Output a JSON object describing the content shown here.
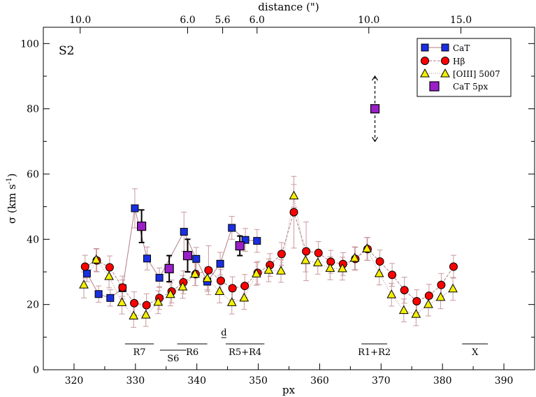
{
  "chart_data": {
    "type": "scatter",
    "panel_label": "S2",
    "xlabel": "px",
    "ylabel_main": "σ (km s",
    "ylabel_sup": "-1",
    "ylabel_close": ")",
    "top_xlabel": "distance (\")",
    "xlim": [
      315,
      395
    ],
    "ylim": [
      0,
      105
    ],
    "x_ticks": [
      320,
      330,
      340,
      350,
      360,
      370,
      380,
      390
    ],
    "y_ticks": [
      0,
      20,
      40,
      60,
      80,
      100
    ],
    "top_ticks": [
      {
        "label": "10.0",
        "x": 321.0
      },
      {
        "label": "6.0",
        "x": 338.5
      },
      {
        "label": "5.6",
        "x": 344.2
      },
      {
        "label": "6.0",
        "x": 349.8
      },
      {
        "label": "10.0",
        "x": 368.0
      },
      {
        "label": "15.0",
        "x": 383.0
      }
    ],
    "legend": [
      {
        "label": "CaT",
        "marker": "square"
      },
      {
        "label": "Hβ",
        "marker": "circle"
      },
      {
        "label": "[OIII] 5007",
        "marker": "triangle"
      },
      {
        "label": "CaT  5px",
        "marker": "bigsquare"
      }
    ],
    "series": [
      {
        "name": "CaT",
        "color": "#1a2fe0",
        "line_color": "#b07f86",
        "points": [
          {
            "x": 322.1,
            "y": 29.5,
            "e": 2.5
          },
          {
            "x": 324.0,
            "y": 23.2,
            "e": 2.5
          },
          {
            "x": 325.9,
            "y": 22.0,
            "e": 2.5
          },
          {
            "x": 327.9,
            "y": 25.0,
            "e": 2.5
          },
          {
            "x": 329.9,
            "y": 49.5,
            "e": 6.0
          },
          {
            "x": 331.9,
            "y": 34.1,
            "e": 3.5
          },
          {
            "x": 333.9,
            "y": 28.2,
            "e": 3.0
          },
          {
            "x": 337.9,
            "y": 42.3,
            "e": 6.0
          },
          {
            "x": 339.9,
            "y": 34.0,
            "e": 3.5
          },
          {
            "x": 341.7,
            "y": 27.0,
            "e": 3.0
          },
          {
            "x": 343.8,
            "y": 32.5,
            "e": 3.5
          },
          {
            "x": 345.7,
            "y": 43.5,
            "e": 3.5
          },
          {
            "x": 347.9,
            "y": 39.8,
            "e": 3.5
          },
          {
            "x": 349.8,
            "y": 39.5,
            "e": 3.5
          }
        ]
      },
      {
        "name": "Hβ",
        "color": "#ff0000",
        "line_color": "#b07f86",
        "points": [
          {
            "x": 321.8,
            "y": 31.6,
            "e": 3.5
          },
          {
            "x": 323.7,
            "y": 33.5,
            "e": 3.5
          },
          {
            "x": 325.8,
            "y": 31.4,
            "e": 3.5
          },
          {
            "x": 327.9,
            "y": 25.2,
            "e": 3.5
          },
          {
            "x": 329.8,
            "y": 20.4,
            "e": 3.5
          },
          {
            "x": 331.8,
            "y": 19.8,
            "e": 3.5
          },
          {
            "x": 333.9,
            "y": 22.0,
            "e": 3.5
          },
          {
            "x": 335.9,
            "y": 24.0,
            "e": 3.5
          },
          {
            "x": 337.8,
            "y": 26.8,
            "e": 3.5
          },
          {
            "x": 339.8,
            "y": 29.3,
            "e": 3.5
          },
          {
            "x": 341.9,
            "y": 30.5,
            "e": 7.5
          },
          {
            "x": 343.9,
            "y": 27.3,
            "e": 3.5
          },
          {
            "x": 345.8,
            "y": 25.0,
            "e": 3.5
          },
          {
            "x": 347.8,
            "y": 25.7,
            "e": 3.5
          },
          {
            "x": 349.9,
            "y": 29.7,
            "e": 3.5
          },
          {
            "x": 351.9,
            "y": 32.1,
            "e": 3.5
          },
          {
            "x": 353.8,
            "y": 35.5,
            "e": 3.5
          },
          {
            "x": 355.8,
            "y": 48.3,
            "e": 11.0
          },
          {
            "x": 357.8,
            "y": 36.3,
            "e": 9.0
          },
          {
            "x": 359.8,
            "y": 35.8,
            "e": 3.5
          },
          {
            "x": 361.8,
            "y": 33.1,
            "e": 3.5
          },
          {
            "x": 363.8,
            "y": 32.4,
            "e": 3.5
          },
          {
            "x": 365.8,
            "y": 34.0,
            "e": 3.5
          },
          {
            "x": 367.8,
            "y": 37.0,
            "e": 3.5
          },
          {
            "x": 369.8,
            "y": 33.2,
            "e": 3.5
          },
          {
            "x": 371.8,
            "y": 29.1,
            "e": 3.5
          },
          {
            "x": 373.8,
            "y": 24.4,
            "e": 4.0
          },
          {
            "x": 375.8,
            "y": 21.0,
            "e": 3.5
          },
          {
            "x": 377.8,
            "y": 22.7,
            "e": 3.5
          },
          {
            "x": 379.8,
            "y": 26.0,
            "e": 3.5
          },
          {
            "x": 381.8,
            "y": 31.6,
            "e": 3.5
          }
        ]
      },
      {
        "name": "[OIII] 5007",
        "color": "#f5f000",
        "line_color": "#b07f86",
        "points": [
          {
            "x": 321.6,
            "y": 26.0,
            "e": 4.0
          },
          {
            "x": 323.6,
            "y": 33.7,
            "e": 3.5
          },
          {
            "x": 325.7,
            "y": 28.6,
            "e": 3.5
          },
          {
            "x": 327.8,
            "y": 20.6,
            "e": 3.5
          },
          {
            "x": 329.7,
            "y": 16.5,
            "e": 3.5
          },
          {
            "x": 331.7,
            "y": 16.8,
            "e": 3.5
          },
          {
            "x": 333.7,
            "y": 20.7,
            "e": 3.5
          },
          {
            "x": 335.7,
            "y": 23.1,
            "e": 3.5
          },
          {
            "x": 337.7,
            "y": 25.4,
            "e": 3.5
          },
          {
            "x": 339.7,
            "y": 29.3,
            "e": 3.5
          },
          {
            "x": 341.7,
            "y": 28.0,
            "e": 3.5
          },
          {
            "x": 343.7,
            "y": 24.0,
            "e": 3.5
          },
          {
            "x": 345.7,
            "y": 20.6,
            "e": 3.5
          },
          {
            "x": 347.7,
            "y": 22.0,
            "e": 3.5
          },
          {
            "x": 349.7,
            "y": 29.4,
            "e": 3.5
          },
          {
            "x": 351.7,
            "y": 30.5,
            "e": 3.5
          },
          {
            "x": 353.7,
            "y": 30.3,
            "e": 3.5
          },
          {
            "x": 355.8,
            "y": 53.3,
            "e": 3.5
          },
          {
            "x": 357.7,
            "y": 33.5,
            "e": 3.5
          },
          {
            "x": 359.7,
            "y": 32.8,
            "e": 3.5
          },
          {
            "x": 361.7,
            "y": 31.1,
            "e": 3.5
          },
          {
            "x": 363.7,
            "y": 31.0,
            "e": 3.5
          },
          {
            "x": 365.7,
            "y": 34.2,
            "e": 3.5
          },
          {
            "x": 367.7,
            "y": 37.1,
            "e": 3.5
          },
          {
            "x": 369.7,
            "y": 29.5,
            "e": 3.5
          },
          {
            "x": 371.7,
            "y": 23.0,
            "e": 3.5
          },
          {
            "x": 373.7,
            "y": 18.2,
            "e": 3.5
          },
          {
            "x": 375.7,
            "y": 17.0,
            "e": 3.5
          },
          {
            "x": 377.7,
            "y": 20.0,
            "e": 3.5
          },
          {
            "x": 379.7,
            "y": 22.2,
            "e": 3.5
          },
          {
            "x": 381.7,
            "y": 24.8,
            "e": 3.5
          }
        ]
      },
      {
        "name": "CaT  5px",
        "color": "#9a1fc8",
        "points": [
          {
            "x": 331.0,
            "y": 44.0,
            "e": 5.0
          },
          {
            "x": 335.5,
            "y": 31.0,
            "e": 4.0
          },
          {
            "x": 338.5,
            "y": 35.0,
            "e": 5.0
          },
          {
            "x": 347.0,
            "y": 38.0,
            "e": 3.0
          }
        ],
        "outlier": {
          "x": 369.0,
          "y": 80.0,
          "up": 90.0,
          "down": 70.0
        }
      }
    ],
    "regions": [
      {
        "label": "R7",
        "x0": 328.3,
        "x1": 333.0
      },
      {
        "label": "S6",
        "x0": 334.0,
        "x1": 338.3
      },
      {
        "label": "R6",
        "x0": 336.8,
        "x1": 341.7
      },
      {
        "label": "d",
        "x0": 344.0,
        "x1": 344.8
      },
      {
        "label": "R5+R4",
        "x0": 344.7,
        "x1": 351.0
      },
      {
        "label": "R1+R2",
        "x0": 366.8,
        "x1": 371.0
      },
      {
        "label": "X",
        "x0": 383.2,
        "x1": 387.4
      }
    ]
  }
}
